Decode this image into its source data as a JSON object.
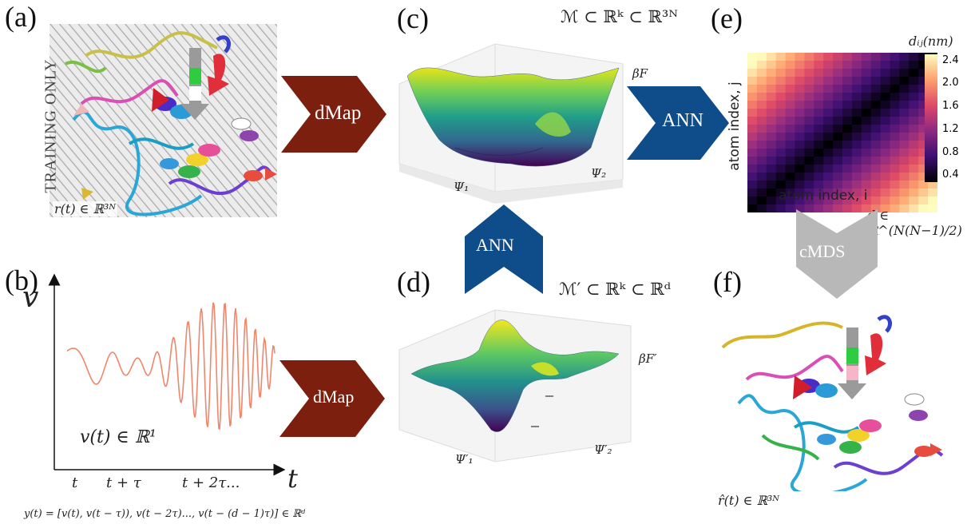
{
  "panels": {
    "a": "(a)",
    "b": "(b)",
    "c": "(c)",
    "d": "(d)",
    "e": "(e)",
    "f": "(f)"
  },
  "panel_a": {
    "watermark": "TRAINING ONLY",
    "caption": "r(t) ∈ ℝ³ᴺ"
  },
  "panel_b": {
    "ylabel": "v",
    "xlabel": "t",
    "signal_label": "v(t) ∈ ℝ¹",
    "ticks": [
      "t",
      "t + τ",
      "t + 2τ..."
    ],
    "formula": "y(t) = [v(t), v(t − τ)), v(t − 2τ)..., v(t − (d − 1)τ)] ∈ ℝᵈ"
  },
  "panel_c": {
    "manifold": "ℳ ⊂ ℝᵏ ⊂ ℝ³ᴺ",
    "zlabel": "βF",
    "xlabel": "Ψ₁",
    "ylabel": "Ψ₂"
  },
  "panel_d": {
    "manifold": "ℳ′ ⊂ ℝᵏ ⊂ ℝᵈ",
    "zlabel": "βF′",
    "xlabel": "Ψ′₁",
    "ylabel": "Ψ′₂"
  },
  "panel_e": {
    "colorbar_title": "dᵢⱼ(nm)",
    "colorbar_ticks": [
      "2.4",
      "2.0",
      "1.6",
      "1.2",
      "0.8",
      "0.4"
    ],
    "xlabel": "atom index, i",
    "ylabel": "atom index, j",
    "caption": "d ∈ ℝ^(N(N−1)/2)"
  },
  "panel_f": {
    "caption": "r̂(t) ∈ ℝ³ᴺ"
  },
  "arrows": {
    "dmap_top": "dMap",
    "dmap_bottom": "dMap",
    "ann_right": "ANN",
    "ann_up": "ANN",
    "cmds": "cMDS"
  },
  "colors": {
    "dmap_arrow": "#7d1f0e",
    "ann_arrow": "#0f4c8a",
    "cmds_arrow": "#b8b8b8",
    "signal": "#f0866b"
  }
}
